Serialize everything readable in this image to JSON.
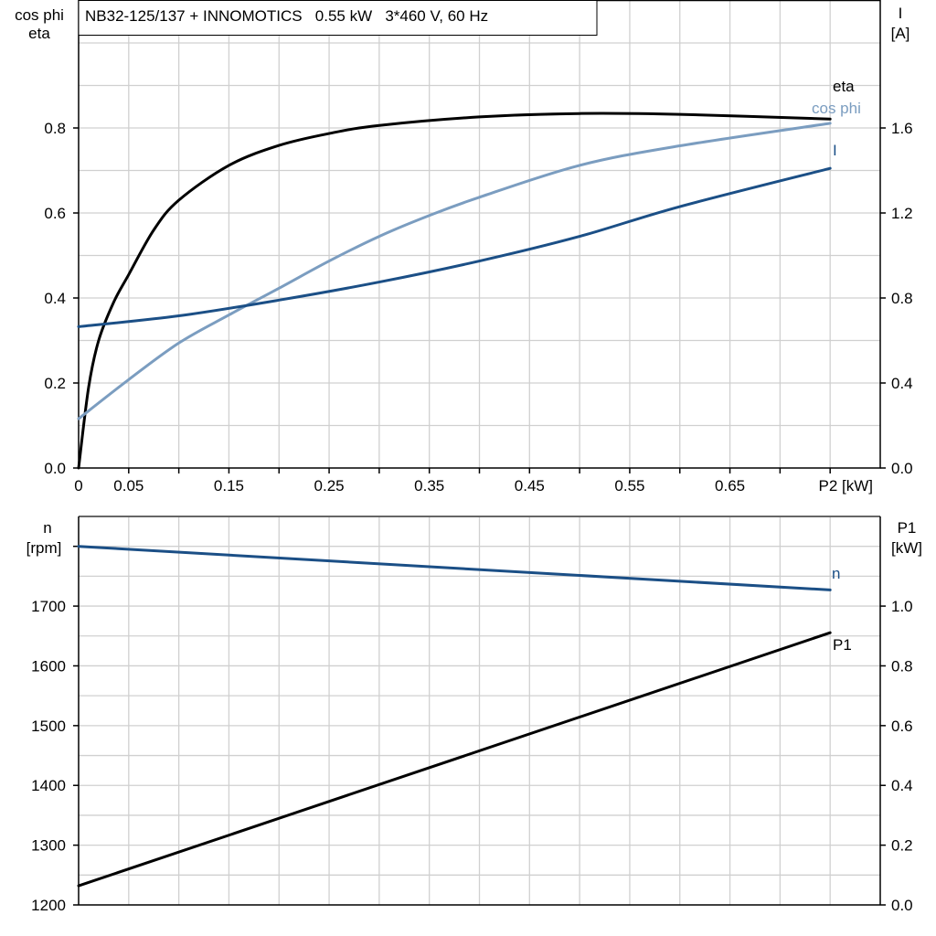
{
  "chart_data": [
    {
      "type": "line",
      "title": "NB32-125/137 + INNOMOTICS   0.55 kW   3*460 V, 60 Hz",
      "xlabel": "P2 [kW]",
      "ylabel_left": [
        "cos phi",
        "eta"
      ],
      "ylabel_right": [
        "I",
        "[A]"
      ],
      "xlim": [
        0,
        0.8
      ],
      "ylim_left": [
        0,
        1.1
      ],
      "ylim_right": [
        0,
        2.2
      ],
      "x_ticks": [
        "0",
        "0.05",
        "0.15",
        "0.25",
        "0.35",
        "0.45",
        "0.55",
        "0.65"
      ],
      "x_tick_values": [
        0,
        0.05,
        0.15,
        0.25,
        0.35,
        0.45,
        0.55,
        0.65
      ],
      "y_left_ticks": [
        "0.0",
        "0.2",
        "0.4",
        "0.6",
        "0.8"
      ],
      "y_right_ticks": [
        "0.0",
        "0.4",
        "0.8",
        "1.2",
        "1.6"
      ],
      "grid": true,
      "series": [
        {
          "name": "eta",
          "axis": "left",
          "color": "#000000",
          "x": [
            0,
            0.01,
            0.02,
            0.035,
            0.05,
            0.075,
            0.1,
            0.15,
            0.2,
            0.25,
            0.3,
            0.4,
            0.5,
            0.6,
            0.75
          ],
          "y": [
            0,
            0.19,
            0.3,
            0.39,
            0.455,
            0.56,
            0.63,
            0.712,
            0.759,
            0.787,
            0.806,
            0.826,
            0.834,
            0.832,
            0.821
          ]
        },
        {
          "name": "cos phi",
          "axis": "left",
          "color": "#7b9dc0",
          "x": [
            0,
            0.05,
            0.1,
            0.15,
            0.2,
            0.25,
            0.3,
            0.35,
            0.4,
            0.5,
            0.6,
            0.75
          ],
          "y": [
            0.116,
            0.208,
            0.294,
            0.36,
            0.423,
            0.487,
            0.545,
            0.594,
            0.637,
            0.712,
            0.758,
            0.811
          ]
        },
        {
          "name": "I",
          "axis": "right",
          "color": "#1b4f86",
          "x": [
            0,
            0.1,
            0.2,
            0.3,
            0.4,
            0.5,
            0.6,
            0.75
          ],
          "y": [
            0.665,
            0.716,
            0.79,
            0.875,
            0.974,
            1.09,
            1.23,
            1.41
          ]
        }
      ]
    },
    {
      "type": "line",
      "xlim": [
        0,
        0.8
      ],
      "ylabel_left": [
        "n",
        "[rpm]"
      ],
      "ylabel_right": [
        "P1",
        "[kW]"
      ],
      "ylim_left": [
        1200,
        1850
      ],
      "ylim_right": [
        0,
        1.3
      ],
      "y_left_ticks": [
        "1200",
        "1300",
        "1400",
        "1500",
        "1600",
        "1700"
      ],
      "y_right_ticks": [
        "0.0",
        "0.2",
        "0.4",
        "0.6",
        "0.8",
        "1.0"
      ],
      "grid": true,
      "series": [
        {
          "name": "n",
          "axis": "left",
          "color": "#1b4f86",
          "x": [
            0,
            0.75
          ],
          "y": [
            1800,
            1727
          ]
        },
        {
          "name": "P1",
          "axis": "right",
          "color": "#000000",
          "x": [
            0,
            0.75
          ],
          "y": [
            0.064,
            0.911
          ]
        }
      ]
    }
  ]
}
